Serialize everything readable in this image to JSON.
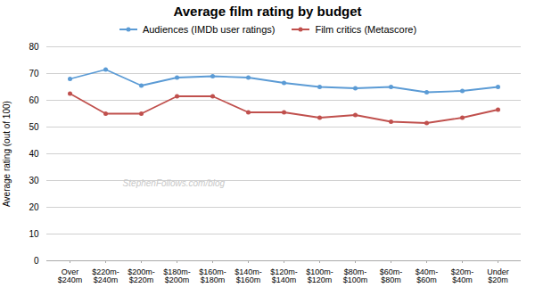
{
  "chart_data": {
    "type": "line",
    "title": "Average film rating by budget",
    "ylabel": "Average rating (out of 100)",
    "categories": [
      "Over\n$240m",
      "$220m-\n$240m",
      "$200m-\n$220m",
      "$180m-\n$200m",
      "$160m-\n$180m",
      "$140m-\n$160m",
      "$120m-\n$140m",
      "$100m-\n$120m",
      "$80m-\n$100m",
      "$60m-\n$80m",
      "$40m-\n$60m",
      "$20m-\n$40m",
      "Under\n$20m"
    ],
    "series": [
      {
        "name": "Audiences (IMDb user ratings)",
        "color": "#5b9bd5",
        "values": [
          68,
          71.5,
          65.5,
          68.5,
          69,
          68.5,
          66.5,
          65,
          64.5,
          65,
          63,
          63.5,
          65
        ]
      },
      {
        "name": "Film critics (Metascore)",
        "color": "#c0504d",
        "values": [
          62.5,
          55,
          55,
          61.5,
          61.5,
          55.5,
          55.5,
          53.5,
          54.5,
          52,
          51.5,
          53.5,
          56.5
        ]
      }
    ],
    "ylim": [
      0,
      80
    ],
    "yticks": [
      0,
      10,
      20,
      30,
      40,
      50,
      60,
      70,
      80
    ],
    "grid": true,
    "legend": "top",
    "marker": "circle",
    "annotations": [
      "StephenFollows.com/blog"
    ]
  }
}
